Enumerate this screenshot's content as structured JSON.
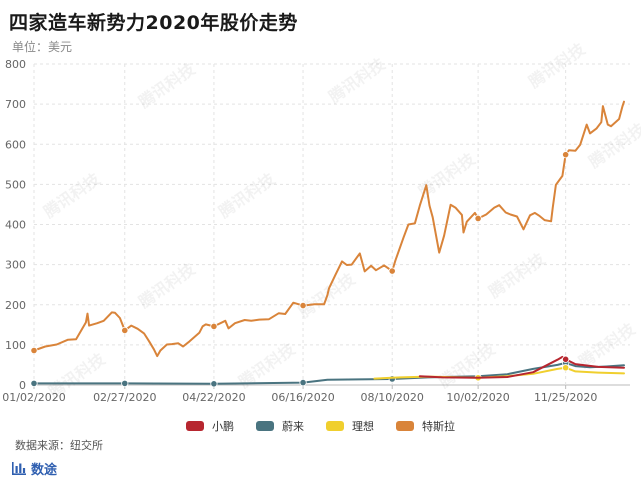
{
  "header": {
    "title": "四家造车新势力2020年股价走势",
    "subtitle": "单位：美元"
  },
  "footer": {
    "source": "数据来源：纽交所",
    "brand": "数途"
  },
  "watermark": "腾讯科技",
  "colors": {
    "小鹏": "#b7262f",
    "蔚来": "#4a7480",
    "理想": "#f0cf2e",
    "特斯拉": "#d9843a",
    "grid": "#e3e3e3",
    "axis_text": "#666666"
  },
  "chart_data": {
    "type": "line",
    "title": "四家造车新势力2020年股价走势",
    "subtitle": "单位：美元",
    "x_ticks": [
      "01/02/2020",
      "02/27/2020",
      "04/22/2020",
      "06/16/2020",
      "08/10/2020",
      "10/02/2020",
      "11/25/2020"
    ],
    "x_range": [
      "2020-01-02",
      "2020-12-31"
    ],
    "ylim": [
      0,
      800
    ],
    "y_ticks": [
      0,
      100,
      200,
      300,
      400,
      500,
      600,
      700,
      800
    ],
    "grid": "dashed",
    "legend_position": "bottom",
    "series": [
      {
        "name": "特斯拉",
        "points": [
          [
            "2020-01-02",
            86
          ],
          [
            "2020-01-09",
            96
          ],
          [
            "2020-01-16",
            101
          ],
          [
            "2020-01-23",
            113
          ],
          [
            "2020-01-28",
            114
          ],
          [
            "2020-02-03",
            156
          ],
          [
            "2020-02-04",
            178
          ],
          [
            "2020-02-05",
            148
          ],
          [
            "2020-02-10",
            154
          ],
          [
            "2020-02-14",
            160
          ],
          [
            "2020-02-19",
            181
          ],
          [
            "2020-02-21",
            180
          ],
          [
            "2020-02-24",
            167
          ],
          [
            "2020-02-27",
            136
          ],
          [
            "2020-03-02",
            148
          ],
          [
            "2020-03-06",
            140
          ],
          [
            "2020-03-10",
            128
          ],
          [
            "2020-03-13",
            109
          ],
          [
            "2020-03-16",
            89
          ],
          [
            "2020-03-18",
            72
          ],
          [
            "2020-03-20",
            86
          ],
          [
            "2020-03-24",
            101
          ],
          [
            "2020-03-27",
            102
          ],
          [
            "2020-03-31",
            104
          ],
          [
            "2020-04-03",
            96
          ],
          [
            "2020-04-07",
            109
          ],
          [
            "2020-04-13",
            130
          ],
          [
            "2020-04-15",
            146
          ],
          [
            "2020-04-17",
            151
          ],
          [
            "2020-04-22",
            146
          ],
          [
            "2020-04-29",
            160
          ],
          [
            "2020-05-01",
            141
          ],
          [
            "2020-05-05",
            154
          ],
          [
            "2020-05-11",
            162
          ],
          [
            "2020-05-15",
            160
          ],
          [
            "2020-05-20",
            163
          ],
          [
            "2020-05-26",
            164
          ],
          [
            "2020-06-01",
            179
          ],
          [
            "2020-06-05",
            177
          ],
          [
            "2020-06-10",
            205
          ],
          [
            "2020-06-16",
            198
          ],
          [
            "2020-06-23",
            201
          ],
          [
            "2020-06-29",
            201
          ],
          [
            "2020-07-01",
            224
          ],
          [
            "2020-07-02",
            241
          ],
          [
            "2020-07-06",
            275
          ],
          [
            "2020-07-10",
            308
          ],
          [
            "2020-07-13",
            299
          ],
          [
            "2020-07-16",
            300
          ],
          [
            "2020-07-21",
            328
          ],
          [
            "2020-07-24",
            283
          ],
          [
            "2020-07-28",
            297
          ],
          [
            "2020-07-31",
            286
          ],
          [
            "2020-08-05",
            298
          ],
          [
            "2020-08-10",
            284
          ],
          [
            "2020-08-12",
            311
          ],
          [
            "2020-08-17",
            368
          ],
          [
            "2020-08-20",
            400
          ],
          [
            "2020-08-24",
            403
          ],
          [
            "2020-08-27",
            447
          ],
          [
            "2020-08-31",
            498
          ],
          [
            "2020-09-02",
            447
          ],
          [
            "2020-09-04",
            418
          ],
          [
            "2020-09-08",
            330
          ],
          [
            "2020-09-11",
            372
          ],
          [
            "2020-09-15",
            449
          ],
          [
            "2020-09-18",
            442
          ],
          [
            "2020-09-22",
            424
          ],
          [
            "2020-09-23",
            380
          ],
          [
            "2020-09-25",
            407
          ],
          [
            "2020-09-30",
            429
          ],
          [
            "2020-10-02",
            415
          ],
          [
            "2020-10-07",
            425
          ],
          [
            "2020-10-12",
            442
          ],
          [
            "2020-10-15",
            448
          ],
          [
            "2020-10-19",
            430
          ],
          [
            "2020-10-22",
            425
          ],
          [
            "2020-10-26",
            420
          ],
          [
            "2020-10-30",
            388
          ],
          [
            "2020-11-03",
            423
          ],
          [
            "2020-11-06",
            429
          ],
          [
            "2020-11-09",
            421
          ],
          [
            "2020-11-12",
            411
          ],
          [
            "2020-11-16",
            408
          ],
          [
            "2020-11-17",
            441
          ],
          [
            "2020-11-19",
            499
          ],
          [
            "2020-11-23",
            521
          ],
          [
            "2020-11-25",
            574
          ],
          [
            "2020-11-27",
            585
          ],
          [
            "2020-12-01",
            584
          ],
          [
            "2020-12-04",
            599
          ],
          [
            "2020-12-08",
            649
          ],
          [
            "2020-12-10",
            627
          ],
          [
            "2020-12-14",
            639
          ],
          [
            "2020-12-17",
            655
          ],
          [
            "2020-12-18",
            695
          ],
          [
            "2020-12-21",
            649
          ],
          [
            "2020-12-23",
            645
          ],
          [
            "2020-12-28",
            663
          ],
          [
            "2020-12-30",
            694
          ],
          [
            "2020-12-31",
            706
          ]
        ],
        "markers": [
          [
            "2020-01-02",
            86
          ],
          [
            "2020-02-27",
            136
          ],
          [
            "2020-04-22",
            146
          ],
          [
            "2020-06-16",
            198
          ],
          [
            "2020-08-10",
            284
          ],
          [
            "2020-10-02",
            415
          ],
          [
            "2020-11-25",
            574
          ]
        ]
      },
      {
        "name": "蔚来",
        "points": [
          [
            "2020-01-02",
            4
          ],
          [
            "2020-02-27",
            4
          ],
          [
            "2020-04-22",
            3
          ],
          [
            "2020-06-16",
            6
          ],
          [
            "2020-07-01",
            13
          ],
          [
            "2020-07-20",
            14
          ],
          [
            "2020-08-10",
            15
          ],
          [
            "2020-09-01",
            19
          ],
          [
            "2020-10-02",
            22
          ],
          [
            "2020-10-20",
            27
          ],
          [
            "2020-11-05",
            40
          ],
          [
            "2020-11-20",
            50
          ],
          [
            "2020-11-25",
            55
          ],
          [
            "2020-12-01",
            47
          ],
          [
            "2020-12-10",
            44
          ],
          [
            "2020-12-20",
            46
          ],
          [
            "2020-12-31",
            49
          ]
        ],
        "markers": [
          [
            "2020-01-02",
            4
          ],
          [
            "2020-02-27",
            4
          ],
          [
            "2020-04-22",
            3
          ],
          [
            "2020-06-16",
            6
          ],
          [
            "2020-08-10",
            15
          ],
          [
            "2020-11-25",
            55
          ]
        ]
      },
      {
        "name": "理想",
        "points": [
          [
            "2020-07-30",
            16
          ],
          [
            "2020-08-15",
            19
          ],
          [
            "2020-09-01",
            21
          ],
          [
            "2020-10-02",
            18
          ],
          [
            "2020-10-20",
            22
          ],
          [
            "2020-11-05",
            28
          ],
          [
            "2020-11-20",
            40
          ],
          [
            "2020-11-25",
            43
          ],
          [
            "2020-12-01",
            34
          ],
          [
            "2020-12-15",
            31
          ],
          [
            "2020-12-31",
            29
          ]
        ],
        "markers": [
          [
            "2020-10-02",
            18
          ],
          [
            "2020-11-25",
            43
          ]
        ]
      },
      {
        "name": "小鹏",
        "points": [
          [
            "2020-08-27",
            22
          ],
          [
            "2020-09-10",
            19
          ],
          [
            "2020-10-02",
            18
          ],
          [
            "2020-10-20",
            20
          ],
          [
            "2020-11-05",
            32
          ],
          [
            "2020-11-20",
            63
          ],
          [
            "2020-11-23",
            70
          ],
          [
            "2020-11-25",
            64
          ],
          [
            "2020-12-01",
            52
          ],
          [
            "2020-12-15",
            45
          ],
          [
            "2020-12-31",
            43
          ]
        ],
        "markers": [
          [
            "2020-11-25",
            64
          ]
        ]
      }
    ]
  }
}
